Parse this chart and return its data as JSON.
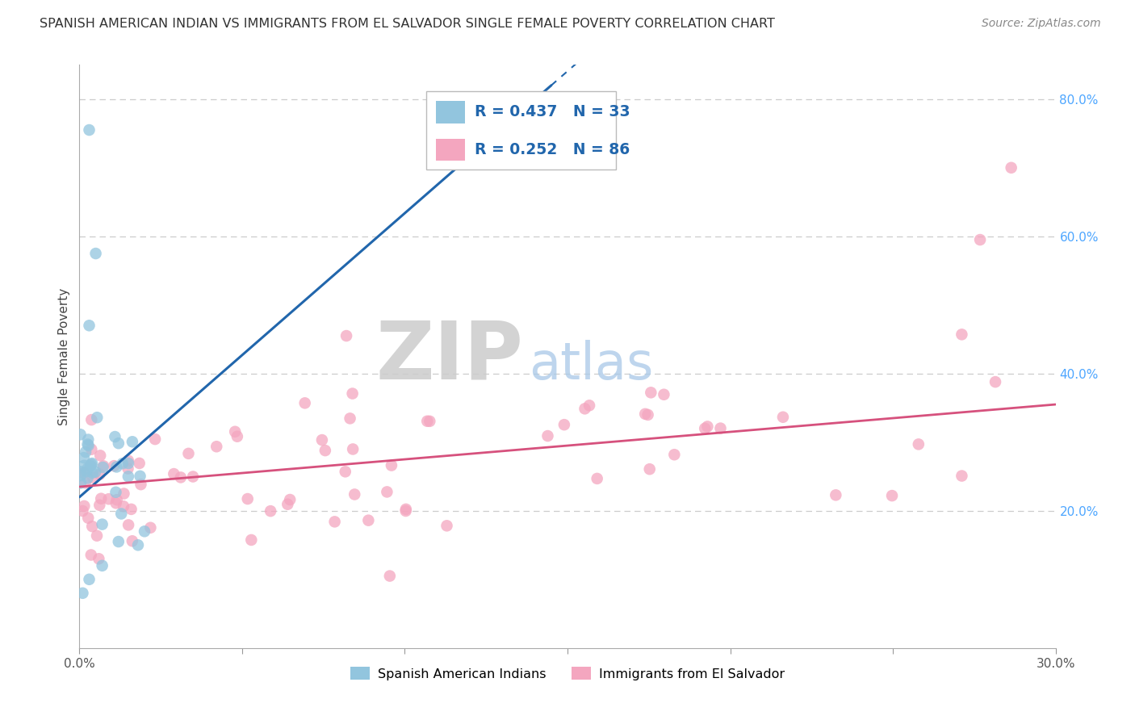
{
  "title": "SPANISH AMERICAN INDIAN VS IMMIGRANTS FROM EL SALVADOR SINGLE FEMALE POVERTY CORRELATION CHART",
  "source": "Source: ZipAtlas.com",
  "ylabel": "Single Female Poverty",
  "xlim": [
    0.0,
    0.3
  ],
  "ylim": [
    0.0,
    0.85
  ],
  "yticks_right": [
    0.2,
    0.4,
    0.6,
    0.8
  ],
  "ytick_labels_right": [
    "20.0%",
    "40.0%",
    "60.0%",
    "80.0%"
  ],
  "blue_color": "#92c5de",
  "pink_color": "#f4a6bf",
  "blue_line_color": "#2166ac",
  "pink_line_color": "#d6517d",
  "legend_r_blue": "R = 0.437",
  "legend_n_blue": "N = 33",
  "legend_r_pink": "R = 0.252",
  "legend_n_pink": "N = 86",
  "label_blue": "Spanish American Indians",
  "label_pink": "Immigrants from El Salvador",
  "title_fontsize": 11.5,
  "axis_label_fontsize": 11,
  "tick_fontsize": 11,
  "source_fontsize": 10,
  "background_color": "#ffffff",
  "grid_color": "#cccccc",
  "blue_line_x0": 0.0,
  "blue_line_y0": 0.22,
  "blue_line_x1": 0.145,
  "blue_line_y1": 0.82,
  "pink_line_x0": 0.0,
  "pink_line_y0": 0.235,
  "pink_line_x1": 0.3,
  "pink_line_y1": 0.355
}
